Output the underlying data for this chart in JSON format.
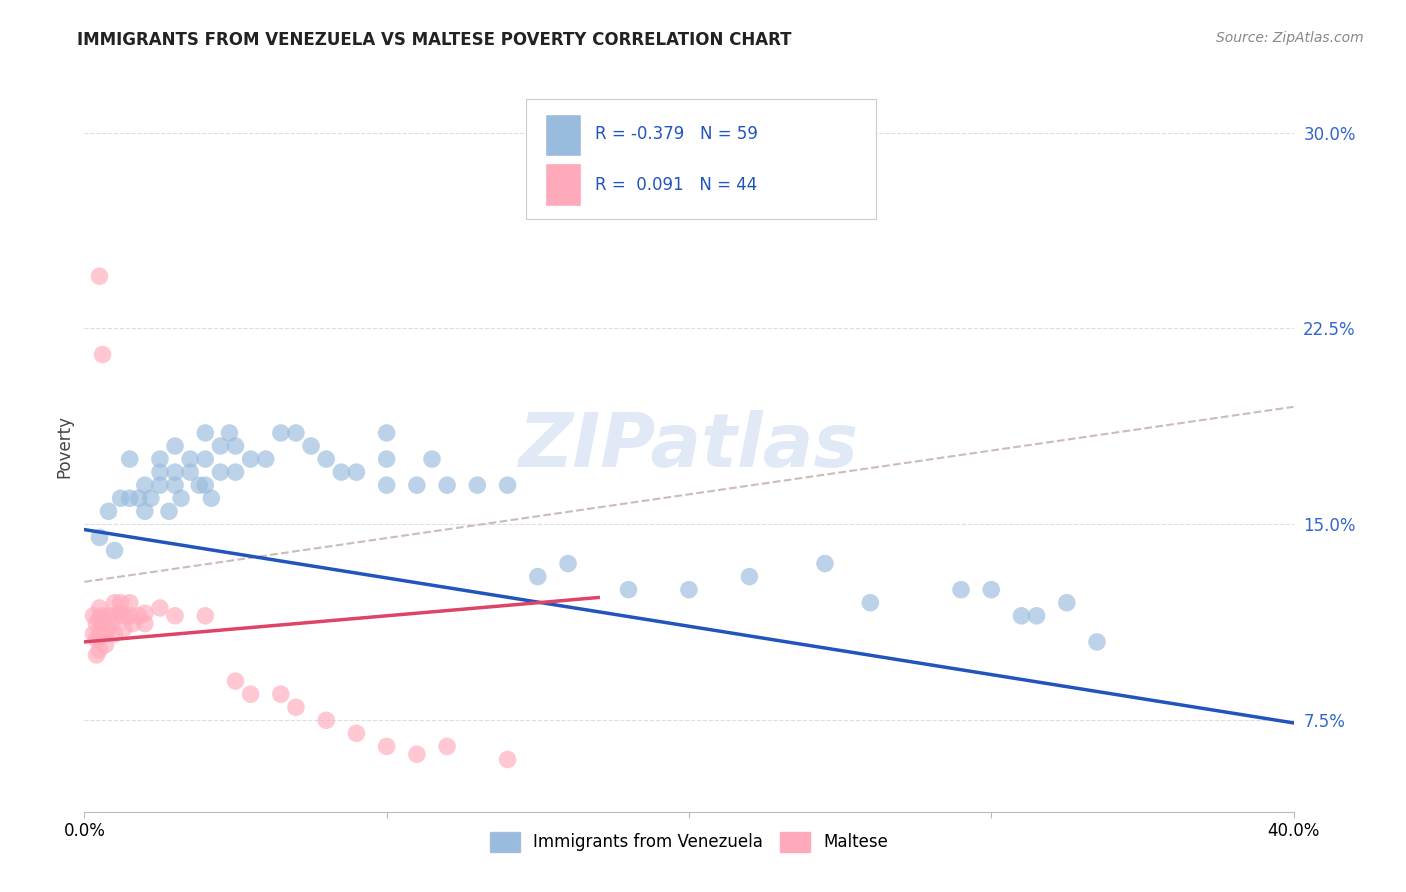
{
  "title": "IMMIGRANTS FROM VENEZUELA VS MALTESE POVERTY CORRELATION CHART",
  "source_text": "Source: ZipAtlas.com",
  "ylabel": "Poverty",
  "xlim": [
    0.0,
    0.4
  ],
  "ylim": [
    0.04,
    0.32
  ],
  "xtick_positions": [
    0.0,
    0.1,
    0.2,
    0.3,
    0.4
  ],
  "xtick_labels": [
    "0.0%",
    "",
    "",
    "",
    "40.0%"
  ],
  "ytick_values": [
    0.075,
    0.15,
    0.225,
    0.3
  ],
  "ytick_labels": [
    "7.5%",
    "15.0%",
    "22.5%",
    "30.0%"
  ],
  "blue_dot_color": "#99BBDD",
  "pink_dot_color": "#FFAABB",
  "blue_line_color": "#2255BB",
  "pink_line_color": "#DD4466",
  "dashed_line_color": "#CCBBBB",
  "grid_color": "#DDDDDD",
  "legend_R1": "-0.379",
  "legend_N1": "59",
  "legend_R2": " 0.091",
  "legend_N2": "44",
  "legend_label1": "Immigrants from Venezuela",
  "legend_label2": "Maltese",
  "watermark": "ZIPatlas",
  "blue_line_x0": 0.0,
  "blue_line_y0": 0.148,
  "blue_line_x1": 0.4,
  "blue_line_y1": 0.074,
  "pink_line_x0": 0.0,
  "pink_line_y0": 0.105,
  "pink_line_x1": 0.17,
  "pink_line_y1": 0.122,
  "dashed_line_x0": 0.0,
  "dashed_line_y0": 0.128,
  "dashed_line_x1": 0.4,
  "dashed_line_y1": 0.195,
  "blue_scatter_x": [
    0.005,
    0.008,
    0.01,
    0.012,
    0.015,
    0.015,
    0.018,
    0.02,
    0.02,
    0.022,
    0.025,
    0.025,
    0.025,
    0.028,
    0.03,
    0.03,
    0.03,
    0.032,
    0.035,
    0.035,
    0.038,
    0.04,
    0.04,
    0.04,
    0.042,
    0.045,
    0.045,
    0.048,
    0.05,
    0.05,
    0.055,
    0.06,
    0.065,
    0.07,
    0.075,
    0.08,
    0.085,
    0.09,
    0.1,
    0.1,
    0.1,
    0.11,
    0.115,
    0.12,
    0.13,
    0.14,
    0.15,
    0.16,
    0.18,
    0.2,
    0.22,
    0.245,
    0.26,
    0.29,
    0.3,
    0.31,
    0.315,
    0.325,
    0.335
  ],
  "blue_scatter_y": [
    0.145,
    0.155,
    0.14,
    0.16,
    0.16,
    0.175,
    0.16,
    0.155,
    0.165,
    0.16,
    0.165,
    0.17,
    0.175,
    0.155,
    0.165,
    0.17,
    0.18,
    0.16,
    0.17,
    0.175,
    0.165,
    0.165,
    0.175,
    0.185,
    0.16,
    0.17,
    0.18,
    0.185,
    0.17,
    0.18,
    0.175,
    0.175,
    0.185,
    0.185,
    0.18,
    0.175,
    0.17,
    0.17,
    0.165,
    0.175,
    0.185,
    0.165,
    0.175,
    0.165,
    0.165,
    0.165,
    0.13,
    0.135,
    0.125,
    0.125,
    0.13,
    0.135,
    0.12,
    0.125,
    0.125,
    0.115,
    0.115,
    0.12,
    0.105
  ],
  "pink_scatter_x": [
    0.003,
    0.003,
    0.004,
    0.004,
    0.004,
    0.005,
    0.005,
    0.005,
    0.005,
    0.006,
    0.006,
    0.007,
    0.007,
    0.008,
    0.008,
    0.009,
    0.01,
    0.01,
    0.01,
    0.012,
    0.012,
    0.013,
    0.013,
    0.015,
    0.015,
    0.016,
    0.018,
    0.02,
    0.02,
    0.025,
    0.03,
    0.04,
    0.05,
    0.055,
    0.065,
    0.07,
    0.08,
    0.09,
    0.1,
    0.11,
    0.12,
    0.14,
    0.005,
    0.006
  ],
  "pink_scatter_y": [
    0.115,
    0.108,
    0.112,
    0.106,
    0.1,
    0.118,
    0.114,
    0.108,
    0.102,
    0.115,
    0.112,
    0.108,
    0.104,
    0.115,
    0.11,
    0.112,
    0.12,
    0.115,
    0.108,
    0.116,
    0.12,
    0.11,
    0.115,
    0.12,
    0.115,
    0.112,
    0.115,
    0.116,
    0.112,
    0.118,
    0.115,
    0.115,
    0.09,
    0.085,
    0.085,
    0.08,
    0.075,
    0.07,
    0.065,
    0.062,
    0.065,
    0.06,
    0.245,
    0.215
  ]
}
